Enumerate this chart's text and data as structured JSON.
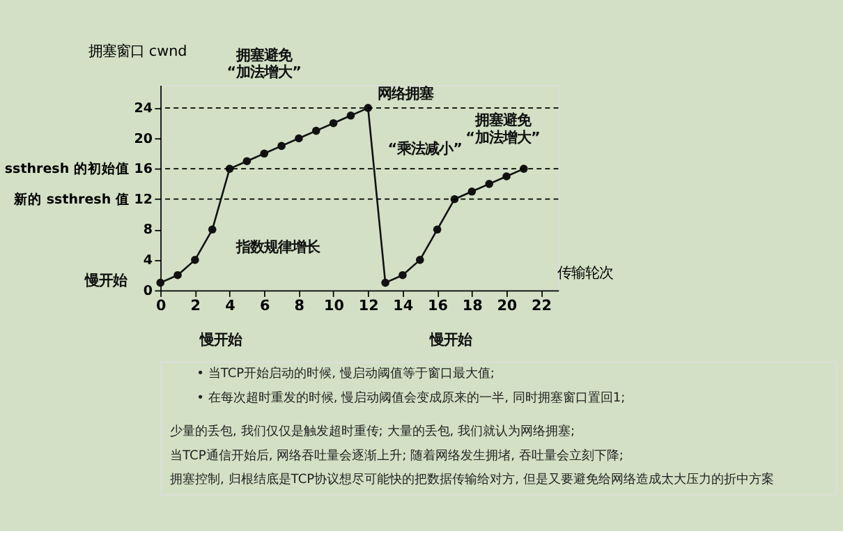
{
  "chart_data": {
    "type": "line",
    "x": [
      0,
      1,
      2,
      3,
      4,
      5,
      6,
      7,
      8,
      9,
      10,
      11,
      12,
      13,
      14,
      15,
      16,
      17,
      18,
      19,
      20,
      21
    ],
    "series": [
      {
        "color": "#111111",
        "values": [
          1,
          2,
          4,
          8,
          16,
          17,
          18,
          19,
          20,
          21,
          22,
          23,
          24,
          1,
          2,
          4,
          8,
          12,
          13,
          14,
          15,
          16
        ]
      }
    ],
    "xlim": [
      0,
      23
    ],
    "ylim": [
      0,
      27
    ],
    "xticks": [
      0,
      2,
      4,
      6,
      8,
      10,
      12,
      14,
      16,
      18,
      20,
      22
    ],
    "yticks": [
      0,
      4,
      8,
      {
        "value": 12,
        "label": "新的 ssthresh 值 12"
      },
      {
        "value": 16,
        "label": "ssthresh 的初始值 16"
      },
      20,
      24
    ],
    "xlabel": "传输轮次",
    "ylabel": "拥塞窗口 cwnd",
    "marker": "circle",
    "grid": false,
    "line_style": "solid",
    "ref_lines": [
      {
        "axis": "y",
        "value": 24,
        "line_style": "dashed"
      },
      {
        "axis": "y",
        "value": 16,
        "line_style": "dashed"
      },
      {
        "axis": "y",
        "value": 12,
        "line_style": "dashed"
      }
    ],
    "annotations": [
      {
        "text": "网络拥塞",
        "x": 12,
        "y": 24
      },
      {
        "text": "慢开始",
        "x": 0,
        "y": 1
      },
      "指数规律增长",
      "“乘法减小”",
      "拥塞避免\n“加法增大”",
      "拥塞避免\n“加法增大”",
      "慢开始",
      "慢开始",
      "•  当TCP开始启动的时候, 慢启动阈值等于窗口最大值;",
      "•  在每次超时重发的时候, 慢启动阈值会变成原来的一半, 同时拥塞窗口置回1;",
      "少量的丢包, 我们仅仅是触发超时重传; 大量的丢包, 我们就认为网络拥塞;",
      "当TCP通信开始后, 网络吞吐量会逐渐上升; 随着网络发生拥堵, 吞吐量会立刻下降;",
      "拥塞控制, 归根结底是TCP协议想尽可能快的把数据传输给对方, 但是又要避免给网络造成太大压力的折中方案"
    ]
  }
}
